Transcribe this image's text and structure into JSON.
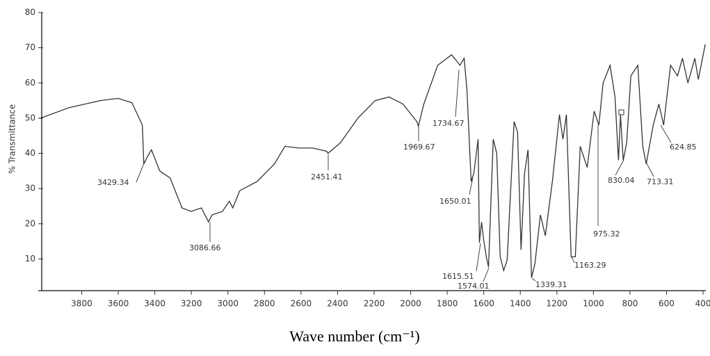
{
  "chart_data": {
    "type": "line",
    "x_label": "Wave number (cm⁻¹)",
    "y_label": "% Transmittance",
    "x": [
      4030,
      3867,
      3696,
      3601,
      3525,
      3468,
      3460,
      3441,
      3418,
      3403,
      3373,
      3316,
      3251,
      3202,
      3145,
      3106,
      3087,
      3030,
      2992,
      2973,
      2935,
      2840,
      2745,
      2688,
      2612,
      2536,
      2460,
      2452,
      2384,
      2289,
      2194,
      2118,
      2042,
      1966,
      1958,
      1928,
      1852,
      1776,
      1745,
      1730,
      1707,
      1692,
      1669,
      1654,
      1631,
      1624,
      1612,
      1601,
      1586,
      1574,
      1548,
      1529,
      1510,
      1491,
      1472,
      1434,
      1415,
      1396,
      1377,
      1358,
      1339,
      1320,
      1290,
      1263,
      1224,
      1186,
      1167,
      1148,
      1122,
      1099,
      1072,
      1034,
      996,
      970,
      947,
      909,
      882,
      863,
      852,
      837,
      818,
      795,
      757,
      730,
      711,
      673,
      642,
      616,
      578,
      540,
      513,
      483,
      445,
      426,
      388
    ],
    "values": [
      49.9,
      53,
      55,
      55.6,
      54.4,
      48,
      37,
      39,
      41,
      39,
      35,
      33,
      24.5,
      23.5,
      24.5,
      20.5,
      22.5,
      23.5,
      26.4,
      24.5,
      29.4,
      32,
      37,
      42,
      41.5,
      41.5,
      40.6,
      40,
      43,
      50,
      55,
      56,
      54,
      49,
      47.7,
      54,
      65,
      68,
      66,
      65,
      67,
      58,
      32,
      34.5,
      44,
      14.6,
      20.5,
      15.6,
      10.6,
      7.7,
      44,
      40,
      10.6,
      6.7,
      9.7,
      49,
      46,
      12.6,
      34.3,
      41,
      4.7,
      8.7,
      22.5,
      16.6,
      32.3,
      51,
      44,
      51,
      10.6,
      10.6,
      42,
      36,
      52,
      48,
      60,
      65,
      56,
      38,
      51,
      38,
      43,
      62,
      65,
      42,
      37,
      48,
      54,
      48,
      65,
      62,
      67,
      60,
      67,
      61,
      71
    ],
    "color": "#333333",
    "xlim": [
      4030,
      385
    ],
    "ylim": [
      1,
      80
    ],
    "xticks": [
      3800,
      3600,
      3400,
      3200,
      3000,
      2800,
      2600,
      2400,
      2200,
      2000,
      1800,
      1600,
      1400,
      1200,
      1000,
      800,
      600,
      400
    ],
    "yticks": [
      10,
      20,
      30,
      40,
      50,
      60,
      70,
      80
    ],
    "annotations": [
      "3429.34",
      "3086.66",
      "2451.41",
      "1969.67",
      "1734.67",
      "1650.01",
      "1615.51",
      "1574.01",
      "1339.31",
      "1163.29",
      "975.32",
      "830.04",
      "713.31",
      "624.85"
    ]
  }
}
